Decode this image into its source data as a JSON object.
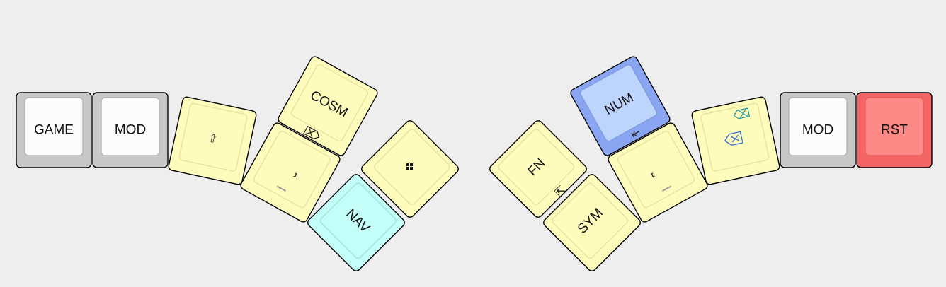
{
  "layout_name": "thumb-cluster-layers",
  "colors": {
    "background": "#eeeeee",
    "gray_outer": "#c8c8c8",
    "gray_inner": "#fcfcfc",
    "gray_inner_border": "#b4b4b4",
    "yellow_outer": "#fefcbd",
    "yellow_inner": "#fefcbd",
    "yellow_inner_border": "#e8e39c",
    "cyan_outer": "#c3fef8",
    "cyan_inner": "#c3fef8",
    "cyan_inner_border": "#9fe3dc",
    "blue_outer": "#8aa6f3",
    "blue_inner": "#bdd5fd",
    "blue_inner_border": "#7f9ae0",
    "red_outer": "#f36565",
    "red_inner": "#fd8a86",
    "red_inner_border": "#e85b5b",
    "stroke": "#000000"
  },
  "keys": {
    "game": {
      "label": "GAME"
    },
    "mod_left": {
      "label": "MOD"
    },
    "shift": {
      "glyph": "⇧"
    },
    "cosm": {
      "label": "COSM"
    },
    "space_left": {
      "glyph": "⎵"
    },
    "nav": {
      "label": "NAV"
    },
    "layer_grid": {
      "glyph": "∷"
    },
    "fn": {
      "label": "FN"
    },
    "sym": {
      "label": "SYM"
    },
    "num": {
      "label": "NUM"
    },
    "space_right": {
      "glyph": "⎵"
    },
    "combo_icons": {
      "glyph": "⌫"
    },
    "mod_right": {
      "label": "MOD"
    },
    "rst": {
      "label": "RST"
    }
  },
  "combos": {
    "left_combo": {
      "glyph": "⌦"
    },
    "right_top_combo": {
      "glyph": "⇤"
    },
    "right_combo": {
      "glyph": "⇱"
    }
  }
}
